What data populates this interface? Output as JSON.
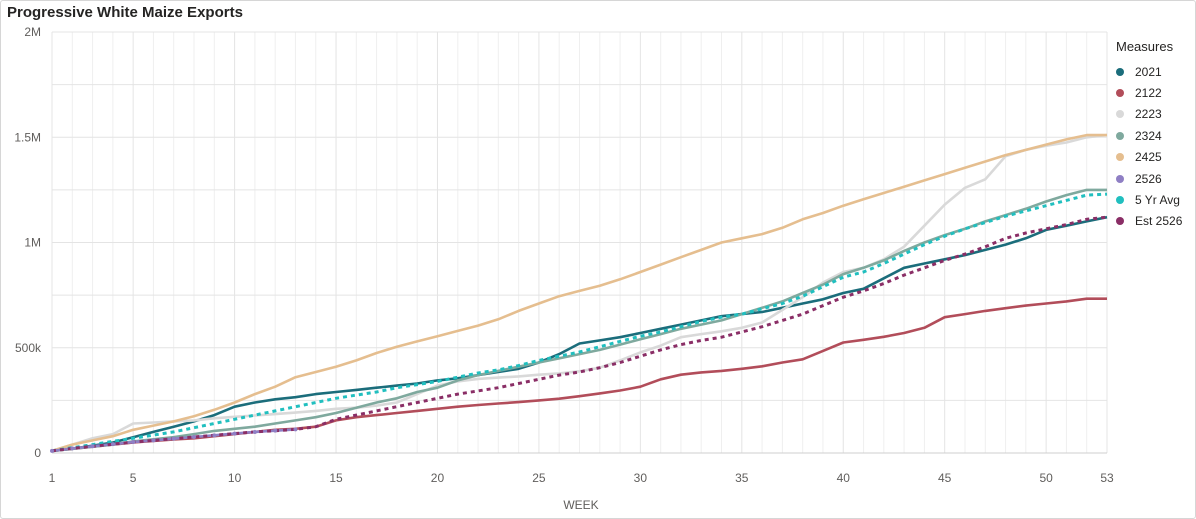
{
  "header": {
    "title": "Progressive White Maize Exports"
  },
  "legend": {
    "title": "Measures"
  },
  "chart_data": {
    "type": "line",
    "title": "Progressive White Maize Exports",
    "xlabel": "WEEK",
    "ylabel": "",
    "xlim": [
      1,
      53
    ],
    "ylim": [
      0,
      2000000
    ],
    "x_ticks": [
      1,
      5,
      10,
      15,
      20,
      25,
      30,
      35,
      40,
      45,
      50,
      53
    ],
    "y_ticks": [
      {
        "value": 0,
        "label": "0"
      },
      {
        "value": 500000,
        "label": "500k"
      },
      {
        "value": 1000000,
        "label": "1M"
      },
      {
        "value": 1500000,
        "label": "1.5M"
      },
      {
        "value": 2000000,
        "label": "2M"
      }
    ],
    "grid": true,
    "legend_position": "right",
    "series": [
      {
        "name": "2021",
        "color": "#1b6d7b",
        "dashed": false,
        "x_start": 1,
        "values": [
          10000,
          20000,
          35000,
          50000,
          75000,
          100000,
          125000,
          150000,
          180000,
          220000,
          240000,
          255000,
          265000,
          280000,
          290000,
          300000,
          310000,
          320000,
          330000,
          345000,
          355000,
          370000,
          385000,
          400000,
          430000,
          470000,
          520000,
          535000,
          550000,
          570000,
          590000,
          610000,
          630000,
          650000,
          660000,
          670000,
          690000,
          710000,
          730000,
          760000,
          780000,
          830000,
          880000,
          900000,
          920000,
          940000,
          965000,
          990000,
          1020000,
          1060000,
          1080000,
          1100000,
          1120000
        ]
      },
      {
        "name": "2122",
        "color": "#b24d5a",
        "dashed": false,
        "x_start": 1,
        "values": [
          10000,
          20000,
          30000,
          40000,
          50000,
          57000,
          64000,
          70000,
          80000,
          90000,
          100000,
          110000,
          115000,
          125000,
          155000,
          170000,
          180000,
          190000,
          200000,
          210000,
          220000,
          228000,
          235000,
          242000,
          250000,
          258000,
          270000,
          283000,
          297000,
          315000,
          350000,
          372000,
          383000,
          390000,
          400000,
          412000,
          430000,
          445000,
          485000,
          525000,
          538000,
          552000,
          570000,
          595000,
          645000,
          660000,
          675000,
          688000,
          700000,
          710000,
          720000,
          733000,
          733000
        ]
      },
      {
        "name": "2223",
        "color": "#d9d9d9",
        "dashed": false,
        "x_start": 1,
        "values": [
          10000,
          40000,
          70000,
          90000,
          140000,
          145000,
          150000,
          155000,
          165000,
          172000,
          178000,
          185000,
          192000,
          200000,
          210000,
          215000,
          225000,
          240000,
          280000,
          320000,
          340000,
          352000,
          358000,
          364000,
          372000,
          378000,
          388000,
          405000,
          440000,
          478000,
          510000,
          550000,
          565000,
          578000,
          595000,
          620000,
          680000,
          740000,
          810000,
          860000,
          880000,
          920000,
          980000,
          1080000,
          1180000,
          1260000,
          1300000,
          1410000,
          1440000,
          1460000,
          1475000,
          1500000,
          1510000
        ]
      },
      {
        "name": "2324",
        "color": "#7fa99e",
        "dashed": false,
        "x_start": 1,
        "values": [
          10000,
          20000,
          30000,
          40000,
          55000,
          65000,
          75000,
          90000,
          105000,
          115000,
          125000,
          140000,
          155000,
          170000,
          190000,
          215000,
          240000,
          260000,
          290000,
          310000,
          345000,
          370000,
          390000,
          410000,
          430000,
          450000,
          470000,
          490000,
          515000,
          540000,
          565000,
          590000,
          610000,
          630000,
          660000,
          690000,
          720000,
          760000,
          800000,
          850000,
          880000,
          915000,
          960000,
          1000000,
          1035000,
          1065000,
          1100000,
          1130000,
          1160000,
          1195000,
          1225000,
          1250000,
          1250000
        ]
      },
      {
        "name": "2425",
        "color": "#e5be8f",
        "dashed": false,
        "x_start": 1,
        "values": [
          10000,
          40000,
          60000,
          80000,
          110000,
          130000,
          150000,
          175000,
          205000,
          240000,
          280000,
          315000,
          360000,
          385000,
          410000,
          440000,
          475000,
          505000,
          530000,
          555000,
          580000,
          605000,
          635000,
          675000,
          710000,
          745000,
          770000,
          795000,
          825000,
          860000,
          895000,
          930000,
          965000,
          1000000,
          1020000,
          1040000,
          1070000,
          1110000,
          1140000,
          1175000,
          1205000,
          1235000,
          1265000,
          1295000,
          1325000,
          1355000,
          1385000,
          1415000,
          1440000,
          1465000,
          1490000,
          1510000,
          1510000
        ]
      },
      {
        "name": "2526",
        "color": "#8f7fc4",
        "dashed": false,
        "x_start": 1,
        "values": [
          10000,
          22000,
          32000,
          42000,
          52000,
          60000,
          68000,
          76000,
          84000,
          92000,
          100000,
          106000,
          112000
        ]
      },
      {
        "name": "5 Yr Avg",
        "color": "#21bfbf",
        "dashed": true,
        "x_start": 1,
        "values": [
          10000,
          25000,
          40000,
          55000,
          70000,
          85000,
          100000,
          120000,
          140000,
          160000,
          180000,
          200000,
          220000,
          240000,
          260000,
          275000,
          290000,
          310000,
          325000,
          340000,
          360000,
          380000,
          395000,
          415000,
          440000,
          460000,
          480000,
          505000,
          530000,
          555000,
          575000,
          600000,
          625000,
          645000,
          660000,
          685000,
          710000,
          745000,
          790000,
          835000,
          860000,
          900000,
          945000,
          990000,
          1030000,
          1065000,
          1095000,
          1125000,
          1150000,
          1175000,
          1200000,
          1225000,
          1230000
        ]
      },
      {
        "name": "Est 2526",
        "color": "#8a2e66",
        "dashed": true,
        "x_start": 1,
        "values": [
          10000,
          22000,
          32000,
          42000,
          52000,
          60000,
          68000,
          76000,
          84000,
          92000,
          100000,
          106000,
          112000,
          125000,
          160000,
          180000,
          200000,
          220000,
          240000,
          260000,
          280000,
          295000,
          310000,
          330000,
          350000,
          370000,
          385000,
          405000,
          430000,
          460000,
          490000,
          515000,
          535000,
          550000,
          575000,
          600000,
          630000,
          660000,
          700000,
          740000,
          770000,
          805000,
          845000,
          880000,
          915000,
          945000,
          980000,
          1020000,
          1045000,
          1065000,
          1085000,
          1110000,
          1120000
        ]
      }
    ]
  }
}
